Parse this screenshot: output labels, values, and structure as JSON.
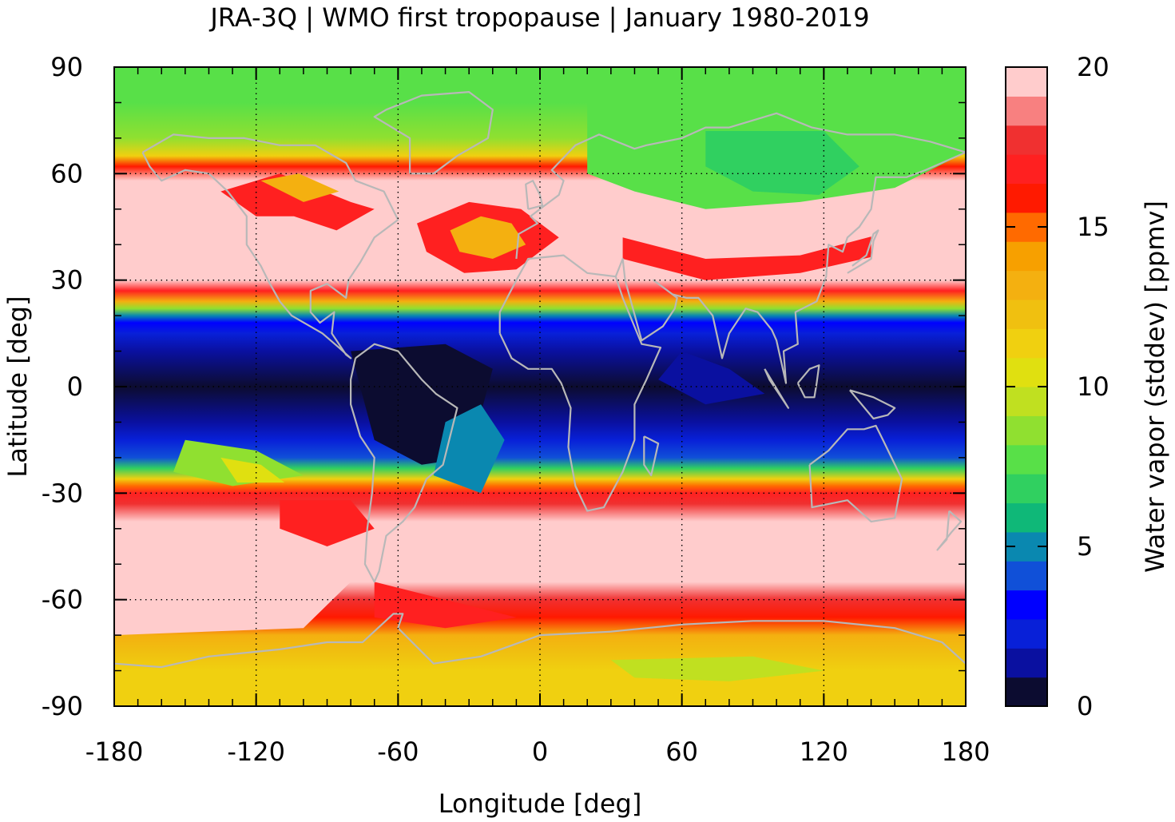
{
  "chart_data": {
    "type": "heatmap",
    "title": "JRA-3Q | WMO first tropopause | January 1980-2019",
    "xlabel": "Longitude [deg]",
    "ylabel": "Latitude [deg]",
    "colorbar_label": "Water vapor (stddev) [ppmv]",
    "xlim": [
      -180,
      180
    ],
    "ylim": [
      -90,
      90
    ],
    "xticks": [
      -180,
      -120,
      -60,
      0,
      60,
      120,
      180
    ],
    "yticks": [
      90,
      60,
      30,
      0,
      -30,
      -60,
      -90
    ],
    "xtick_labels": [
      "-180",
      "-120",
      "-60",
      "0",
      "60",
      "120",
      "180"
    ],
    "ytick_labels": [
      "90",
      "60",
      "30",
      "0",
      "-30",
      "-60",
      "-90"
    ],
    "colorbar_range": [
      0,
      20
    ],
    "colorbar_ticks": [
      0,
      5,
      10,
      15,
      20
    ],
    "colorbar_tick_labels": [
      "0",
      "5",
      "10",
      "15",
      "20"
    ],
    "grid": true,
    "overlay": "coastlines",
    "colorbar_colors": [
      "#0c0c30",
      "#0a10a0",
      "#0820d8",
      "#0000ff",
      "#1050d8",
      "#0a88b0",
      "#0fb878",
      "#30d060",
      "#58e048",
      "#90e030",
      "#c0e020",
      "#e0e010",
      "#f0d010",
      "#f0c010",
      "#f4b010",
      "#f7a000",
      "#ff6a00",
      "#ff1a00",
      "#ff2020",
      "#f03030",
      "#f88080",
      "#ffcccc"
    ],
    "latitude_profile": {
      "lat": [
        90,
        80,
        70,
        65,
        62,
        58,
        50,
        40,
        30,
        27,
        24,
        22,
        20,
        18,
        15,
        10,
        0,
        -10,
        -15,
        -20,
        -23,
        -26,
        -28,
        -30,
        -33,
        -38,
        -45,
        -55,
        -60,
        -65,
        -70,
        -75,
        -80,
        -90
      ],
      "stddev_ppmv": [
        8,
        8,
        9,
        11,
        16,
        20,
        20,
        20,
        20,
        17,
        13,
        9,
        5,
        3,
        2,
        1,
        0.5,
        1,
        2,
        4,
        7,
        11,
        15,
        17,
        18,
        20,
        20,
        20,
        18,
        16,
        13,
        12,
        11,
        11
      ]
    }
  }
}
